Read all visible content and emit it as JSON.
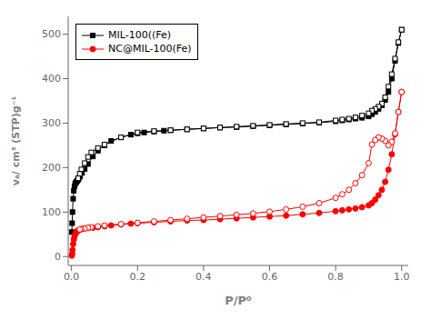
{
  "chart_data": {
    "type": "line",
    "xlabel": "P/P⁰",
    "ylabel": "vₐ/ cm³ (STP)g⁻¹",
    "xlim": [
      -0.01,
      1.02
    ],
    "ylim": [
      -20,
      540
    ],
    "xticks": [
      {
        "value": 0.0,
        "label": "0.0"
      },
      0.2,
      0.4,
      0.6,
      0.8,
      {
        "value": 1.0,
        "label": "1.0"
      }
    ],
    "yticks": [
      0,
      100,
      200,
      300,
      400,
      500
    ],
    "grid": false,
    "legend": "upper left",
    "series": [
      {
        "name": "MIL-100((Fe)",
        "color": "#000000",
        "marker": "square",
        "x": [
          0.001,
          0.002,
          0.003,
          0.005,
          0.007,
          0.009,
          0.011,
          0.013,
          0.015,
          0.017,
          0.019,
          0.022,
          0.026,
          0.032,
          0.04,
          0.05,
          0.065,
          0.08,
          0.1,
          0.12,
          0.15,
          0.18,
          0.2,
          0.22,
          0.25,
          0.28,
          0.3,
          0.35,
          0.4,
          0.45,
          0.5,
          0.55,
          0.6,
          0.65,
          0.7,
          0.75,
          0.8,
          0.82,
          0.84,
          0.86,
          0.88,
          0.9,
          0.91,
          0.92,
          0.93,
          0.94,
          0.95,
          0.96,
          0.97,
          0.98,
          0.99,
          1.0
        ],
        "values": [
          55,
          75,
          100,
          130,
          148,
          158,
          163,
          166,
          168,
          170,
          172,
          175,
          180,
          188,
          197,
          208,
          225,
          238,
          250,
          260,
          268,
          274,
          277,
          279,
          281,
          283,
          284,
          286,
          288,
          290,
          291,
          293,
          295,
          297,
          299,
          301,
          304,
          306,
          308,
          310,
          312,
          315,
          320,
          325,
          332,
          340,
          352,
          370,
          400,
          440,
          480,
          510
        ]
      },
      {
        "color": "#000000",
        "marker": "open-square",
        "x": [
          1.0,
          0.99,
          0.98,
          0.97,
          0.96,
          0.95,
          0.94,
          0.93,
          0.92,
          0.91,
          0.9,
          0.88,
          0.86,
          0.84,
          0.82,
          0.8,
          0.75,
          0.7,
          0.65,
          0.6,
          0.55,
          0.5,
          0.45,
          0.4,
          0.35,
          0.3,
          0.25,
          0.2,
          0.15,
          0.1,
          0.08,
          0.06,
          0.05,
          0.04,
          0.03,
          0.025,
          0.02
        ],
        "values": [
          510,
          482,
          445,
          410,
          382,
          358,
          344,
          337,
          332,
          328,
          322,
          317,
          313,
          310,
          308,
          306,
          302,
          300,
          298,
          296,
          294,
          292,
          290,
          288,
          286,
          284,
          282,
          279,
          268,
          252,
          244,
          234,
          224,
          210,
          196,
          186,
          176
        ]
      },
      {
        "name": "NC@MIL-100(Fe)",
        "color": "#ff0000",
        "marker": "circle",
        "x": [
          0.001,
          0.002,
          0.003,
          0.005,
          0.007,
          0.009,
          0.011,
          0.013,
          0.015,
          0.017,
          0.019,
          0.022,
          0.026,
          0.032,
          0.04,
          0.05,
          0.065,
          0.08,
          0.1,
          0.12,
          0.15,
          0.18,
          0.2,
          0.25,
          0.3,
          0.35,
          0.4,
          0.45,
          0.5,
          0.55,
          0.6,
          0.65,
          0.7,
          0.75,
          0.8,
          0.82,
          0.84,
          0.86,
          0.88,
          0.9,
          0.91,
          0.92,
          0.93,
          0.94,
          0.95,
          0.96,
          0.97,
          0.98,
          0.99,
          1.0
        ],
        "values": [
          2,
          6,
          15,
          28,
          38,
          45,
          50,
          53,
          55,
          57,
          58,
          59,
          61,
          62,
          63,
          64,
          65,
          66,
          68,
          70,
          72,
          74,
          75,
          77,
          79,
          81,
          82,
          84,
          86,
          88,
          90,
          92,
          95,
          98,
          102,
          104,
          106,
          108,
          111,
          115,
          120,
          128,
          138,
          150,
          168,
          195,
          230,
          275,
          325,
          370
        ]
      },
      {
        "color": "#ff0000",
        "marker": "open-circle",
        "x": [
          1.0,
          0.99,
          0.98,
          0.97,
          0.96,
          0.95,
          0.94,
          0.93,
          0.92,
          0.91,
          0.9,
          0.88,
          0.86,
          0.84,
          0.82,
          0.8,
          0.75,
          0.7,
          0.65,
          0.6,
          0.55,
          0.5,
          0.45,
          0.4,
          0.35,
          0.3,
          0.25,
          0.2,
          0.15,
          0.1,
          0.08,
          0.06,
          0.05,
          0.04,
          0.03,
          0.025
        ],
        "values": [
          370,
          325,
          277,
          258,
          250,
          260,
          265,
          268,
          262,
          252,
          210,
          183,
          165,
          150,
          140,
          132,
          120,
          112,
          106,
          101,
          97,
          94,
          91,
          88,
          85,
          82,
          79,
          76,
          73,
          70,
          68,
          66,
          65,
          63,
          62,
          61
        ]
      }
    ]
  }
}
